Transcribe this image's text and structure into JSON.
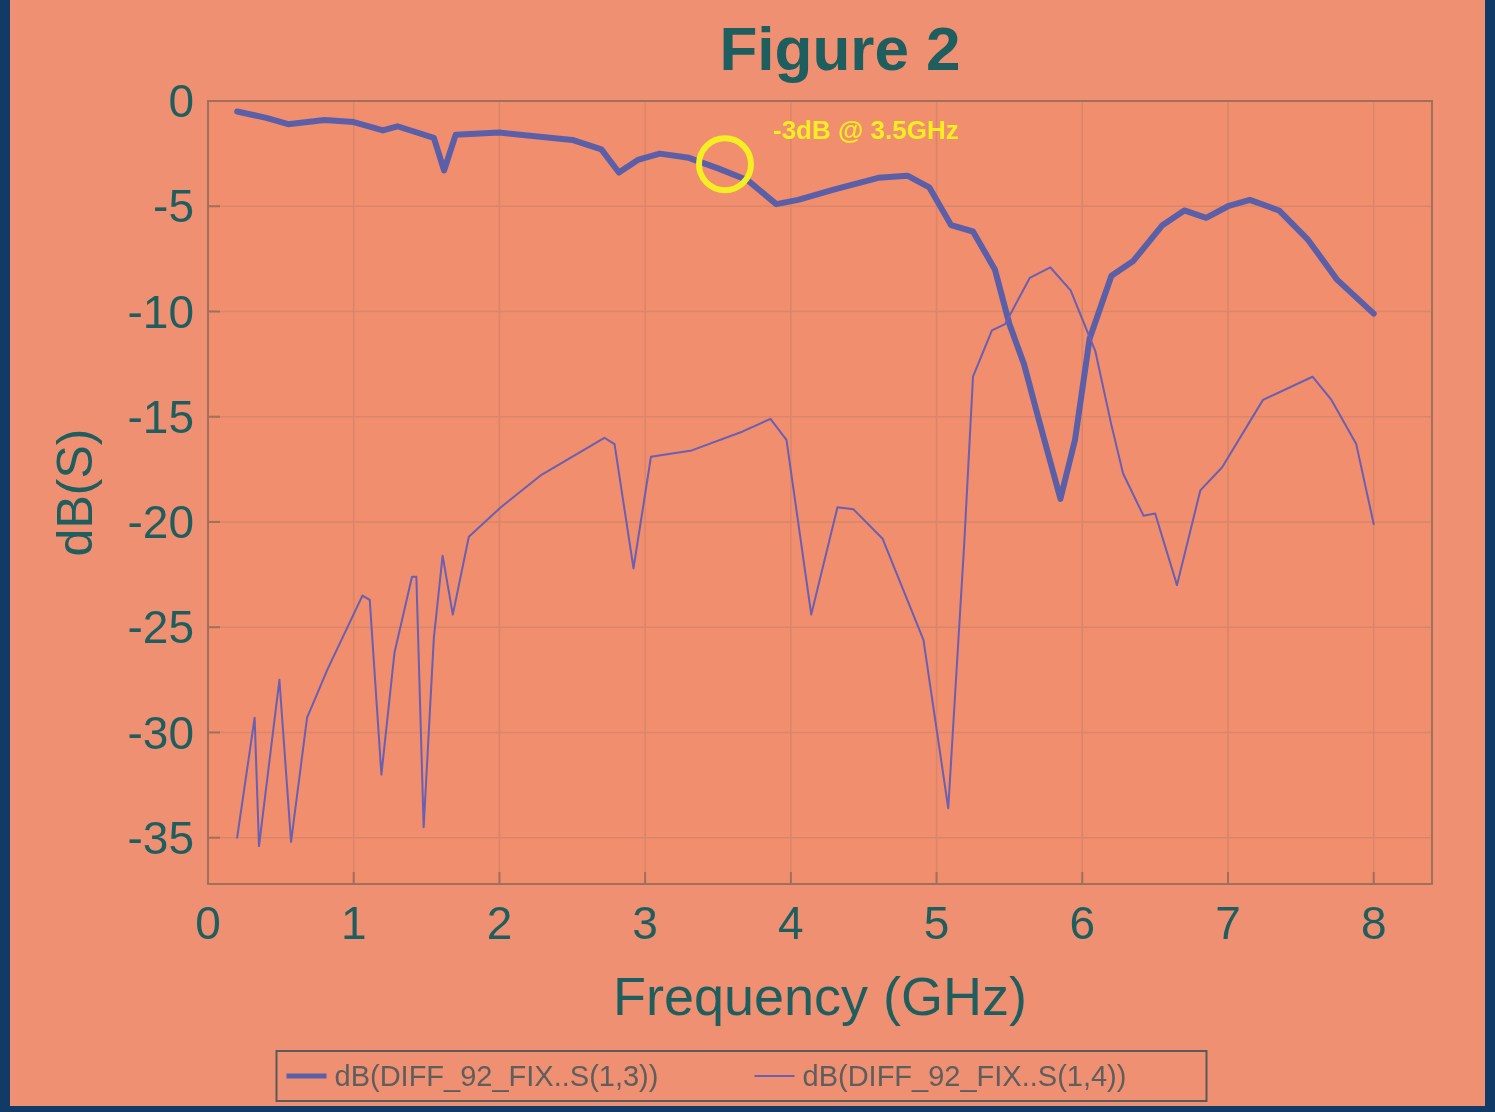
{
  "chart_data": {
    "type": "line",
    "title": "Figure 2",
    "xlabel": "Frequency (GHz)",
    "ylabel": "dB(S)",
    "xlim": [
      0,
      8.4
    ],
    "ylim": [
      -37.2,
      0
    ],
    "xticks": [
      0,
      1,
      2,
      3,
      4,
      5,
      6,
      7,
      8
    ],
    "yticks": [
      0,
      -5,
      -10,
      -15,
      -20,
      -25,
      -30,
      -35
    ],
    "grid": true,
    "legend": "bottom",
    "marker": "none",
    "line_style": "solid",
    "annotations": [
      {
        "text": "-3dB @ 3.5GHz",
        "x": 3.5,
        "y": -3
      }
    ],
    "series": [
      {
        "name": "dB(DIFF_92_FIX..S(1,3))",
        "color": "#5b5fa8",
        "x": [
          0.2,
          0.4,
          0.55,
          0.8,
          1.0,
          1.2,
          1.3,
          1.55,
          1.62,
          1.7,
          2.0,
          2.5,
          2.7,
          2.82,
          2.95,
          3.1,
          3.3,
          3.5,
          3.7,
          3.9,
          4.05,
          4.3,
          4.6,
          4.8,
          4.95,
          5.1,
          5.25,
          5.4,
          5.5,
          5.6,
          5.7,
          5.85,
          5.95,
          6.05,
          6.2,
          6.35,
          6.55,
          6.7,
          6.85,
          7.0,
          7.15,
          7.35,
          7.55,
          7.75,
          8.0
        ],
        "values": [
          -0.5,
          -0.8,
          -1.1,
          -0.9,
          -1.0,
          -1.4,
          -1.2,
          -1.75,
          -3.3,
          -1.6,
          -1.5,
          -1.85,
          -2.3,
          -3.4,
          -2.8,
          -2.5,
          -2.7,
          -3.2,
          -3.75,
          -4.9,
          -4.7,
          -4.2,
          -3.65,
          -3.55,
          -4.1,
          -5.9,
          -6.2,
          -8.0,
          -10.6,
          -12.5,
          -15.1,
          -18.9,
          -16.1,
          -11.3,
          -8.3,
          -7.6,
          -5.9,
          -5.2,
          -5.55,
          -5.0,
          -4.7,
          -5.2,
          -6.6,
          -8.5,
          -10.1
        ]
      },
      {
        "name": "dB(DIFF_92_FIX..S(1,4))",
        "color": "#6a5fb0",
        "x": [
          0.2,
          0.32,
          0.35,
          0.49,
          0.57,
          0.68,
          0.82,
          0.95,
          1.06,
          1.11,
          1.19,
          1.28,
          1.4,
          1.43,
          1.48,
          1.55,
          1.61,
          1.68,
          1.79,
          2.01,
          2.28,
          2.72,
          2.79,
          2.92,
          3.04,
          3.32,
          3.67,
          3.86,
          3.97,
          4.14,
          4.32,
          4.43,
          4.63,
          4.91,
          5.08,
          5.19,
          5.25,
          5.38,
          5.47,
          5.64,
          5.78,
          5.92,
          6.09,
          6.2,
          6.28,
          6.42,
          6.5,
          6.65,
          6.81,
          6.96,
          7.24,
          7.58,
          7.71,
          7.88,
          8.0
        ],
        "values": [
          -35,
          -29.3,
          -35.4,
          -27.5,
          -35.2,
          -29.3,
          -27.0,
          -25.1,
          -23.5,
          -23.7,
          -32.0,
          -26.2,
          -22.6,
          -22.6,
          -34.5,
          -25.5,
          -21.6,
          -24.4,
          -20.7,
          -19.3,
          -17.8,
          -16.0,
          -16.3,
          -22.2,
          -16.9,
          -16.6,
          -15.7,
          -15.1,
          -16.1,
          -24.4,
          -19.3,
          -19.4,
          -20.8,
          -25.6,
          -33.6,
          -21.0,
          -13.1,
          -10.9,
          -10.6,
          -8.4,
          -7.9,
          -9.0,
          -11.9,
          -15.4,
          -17.7,
          -19.7,
          -19.6,
          -23.0,
          -18.5,
          -17.4,
          -14.2,
          -13.1,
          -14.2,
          -16.3,
          -20.1
        ]
      }
    ]
  }
}
